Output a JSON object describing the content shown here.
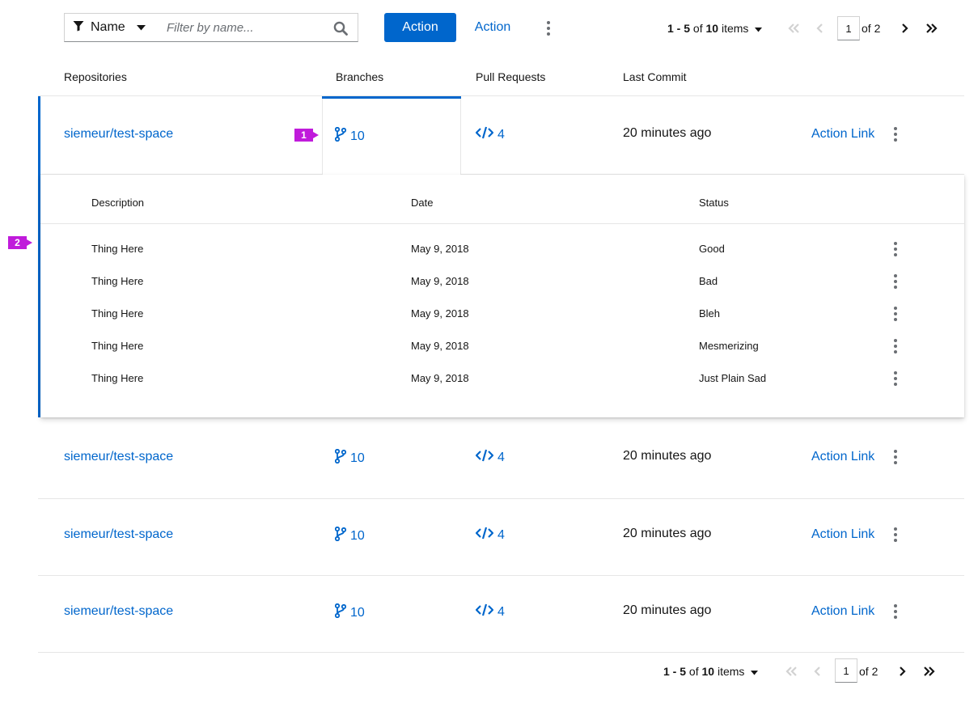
{
  "toolbar": {
    "filter_attribute": "Name",
    "filter_placeholder": "Filter by name...",
    "primary_action": "Action",
    "secondary_action": "Action"
  },
  "pagination_top": {
    "range": "1 - 5",
    "of": "of",
    "total": "10",
    "items": "items",
    "page": "1",
    "of_pages": "of 2"
  },
  "pagination_bottom": {
    "range": "1 - 5",
    "of": "of",
    "total": "10",
    "items": "items",
    "page": "1",
    "of_pages": "of 2"
  },
  "table": {
    "headers": [
      "Repositories",
      "Branches",
      "Pull Requests",
      "Last Commit"
    ],
    "rows": [
      {
        "repo": "siemeur/test-space",
        "branches": "10",
        "pull_requests": "4",
        "last_commit": "20 minutes ago",
        "action": "Action Link"
      },
      {
        "repo": "siemeur/test-space",
        "branches": "10",
        "pull_requests": "4",
        "last_commit": "20 minutes ago",
        "action": "Action Link"
      },
      {
        "repo": "siemeur/test-space",
        "branches": "10",
        "pull_requests": "4",
        "last_commit": "20 minutes ago",
        "action": "Action Link"
      },
      {
        "repo": "siemeur/test-space",
        "branches": "10",
        "pull_requests": "4",
        "last_commit": "20 minutes ago",
        "action": "Action Link"
      }
    ]
  },
  "nested": {
    "headers": [
      "Description",
      "Date",
      "Status"
    ],
    "rows": [
      {
        "description": "Thing Here",
        "date": "May 9, 2018",
        "status": "Good"
      },
      {
        "description": "Thing Here",
        "date": "May 9, 2018",
        "status": "Bad"
      },
      {
        "description": "Thing Here",
        "date": "May 9, 2018",
        "status": "Bleh"
      },
      {
        "description": "Thing Here",
        "date": "May 9, 2018",
        "status": "Mesmerizing"
      },
      {
        "description": "Thing Here",
        "date": "May 9, 2018",
        "status": "Just Plain Sad"
      }
    ]
  },
  "markers": [
    "1",
    "2"
  ],
  "colors": {
    "accent": "#0066cc",
    "marker": "#c01bdb",
    "border": "#e6e6e6"
  },
  "icons": [
    "filter-icon",
    "caret-down-icon",
    "search-icon",
    "kebab-icon",
    "angle-double-left-icon",
    "angle-left-icon",
    "angle-right-icon",
    "angle-double-right-icon",
    "code-branch-icon",
    "code-icon"
  ]
}
